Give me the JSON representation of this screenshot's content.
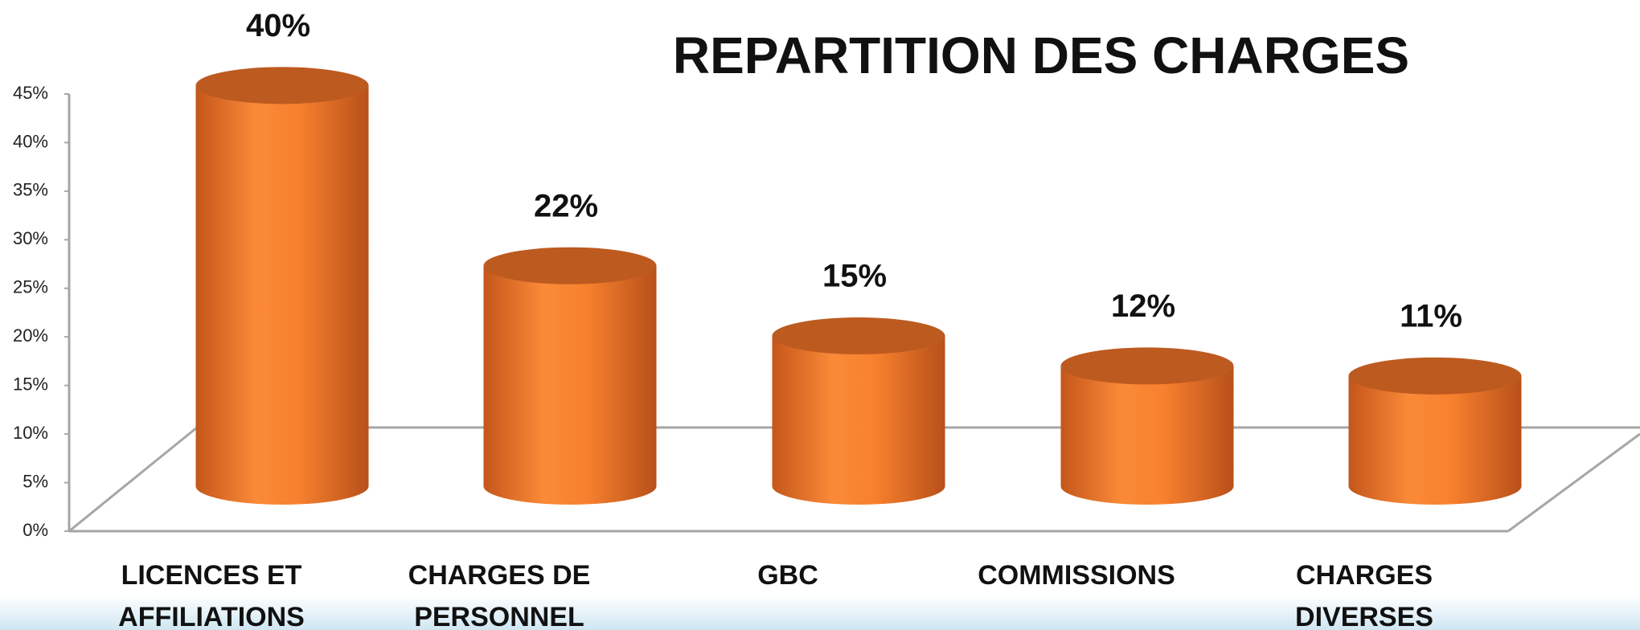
{
  "chart_data": {
    "type": "bar",
    "title": "REPARTITION DES CHARGES",
    "categories": [
      "LICENCES ET AFFILIATIONS",
      "CHARGES DE PERSONNEL",
      "GBC",
      "COMMISSIONS",
      "CHARGES DIVERSES"
    ],
    "values": [
      40,
      22,
      15,
      12,
      11
    ],
    "value_labels": [
      "40%",
      "22%",
      "15%",
      "12%",
      "11%"
    ],
    "color": "#f5802e",
    "ylim": [
      0,
      45
    ],
    "yticks": [
      {
        "value": 0,
        "label": "0%"
      },
      {
        "value": 5,
        "label": "5%"
      },
      {
        "value": 10,
        "label": "10%"
      },
      {
        "value": 15,
        "label": "15%"
      },
      {
        "value": 20,
        "label": "20%"
      },
      {
        "value": 25,
        "label": "25%"
      },
      {
        "value": 30,
        "label": "30%"
      },
      {
        "value": 35,
        "label": "35%"
      },
      {
        "value": 40,
        "label": "40%"
      },
      {
        "value": 45,
        "label": "45%"
      }
    ]
  }
}
